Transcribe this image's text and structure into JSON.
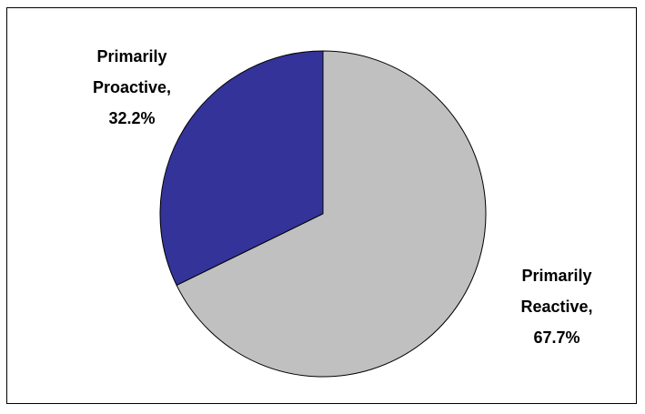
{
  "chart_data": {
    "type": "pie",
    "title": "",
    "slices": [
      {
        "name": "Primarily Proactive,",
        "value": 32.2,
        "label": "32.2%",
        "color": "#333399"
      },
      {
        "name": "Primarily Reactive,",
        "value": 67.7,
        "label": "67.7%",
        "color": "#C0C0C0"
      }
    ],
    "legend": "none",
    "data_labels": "outside"
  }
}
